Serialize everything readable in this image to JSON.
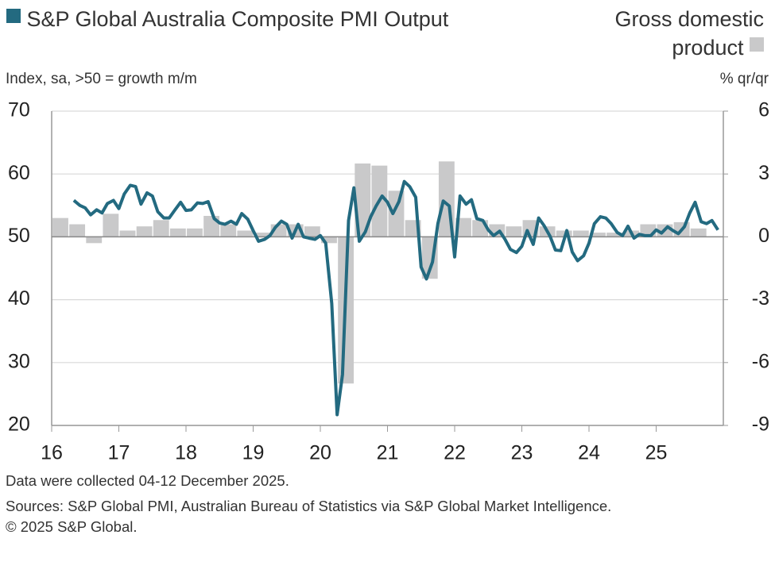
{
  "chart_data": {
    "type": "combo",
    "units_left": "Index, sa, >50 = growth m/m",
    "units_right": "% qr/qr",
    "notes": [
      "Data were collected 04-12 December 2025.",
      "Sources: S&P Global PMI, Australian Bureau of Statistics via S&P Global Market Intelligence.",
      "© 2025 S&P Global."
    ],
    "xlim": [
      16,
      26
    ],
    "xticks": [
      16,
      17,
      18,
      19,
      20,
      21,
      22,
      23,
      24,
      25
    ],
    "ylim": [
      20,
      70
    ],
    "yticks": [
      20,
      30,
      40,
      50,
      60,
      70
    ],
    "y2lim": [
      -9,
      6
    ],
    "y2ticks": [
      -9,
      -6,
      -3,
      0,
      3,
      6
    ],
    "grid": true,
    "series": [
      {
        "name": "Gross domestic product",
        "type": "bar",
        "axis": "y2",
        "color": "#c9c9ca",
        "x": [
          16.13,
          16.38,
          16.63,
          16.88,
          17.13,
          17.38,
          17.63,
          17.88,
          18.13,
          18.38,
          18.63,
          18.88,
          19.13,
          19.38,
          19.63,
          19.88,
          20.13,
          20.38,
          20.63,
          20.88,
          21.13,
          21.38,
          21.63,
          21.88,
          22.13,
          22.38,
          22.63,
          22.88,
          23.13,
          23.38,
          23.63,
          23.88,
          24.13,
          24.38,
          24.63,
          24.88,
          25.13,
          25.38,
          25.63
        ],
        "values": [
          0.9,
          0.6,
          -0.3,
          1.1,
          0.3,
          0.5,
          0.8,
          0.4,
          0.4,
          1.0,
          0.6,
          0.3,
          0.2,
          0.6,
          0.6,
          0.5,
          -0.3,
          -7.0,
          3.5,
          3.4,
          2.2,
          0.8,
          -2.0,
          3.6,
          0.9,
          0.8,
          0.6,
          0.5,
          0.8,
          0.5,
          0.3,
          0.3,
          0.2,
          0.2,
          0.3,
          0.6,
          0.6,
          0.7,
          0.4
        ]
      },
      {
        "name": "S&P Global Australia Composite PMI Output",
        "type": "line",
        "color": "#236a80",
        "x": [
          16.33,
          16.42,
          16.5,
          16.58,
          16.67,
          16.75,
          16.83,
          16.92,
          17,
          17.08,
          17.17,
          17.25,
          17.33,
          17.42,
          17.5,
          17.58,
          17.67,
          17.75,
          17.83,
          17.92,
          18,
          18.08,
          18.17,
          18.25,
          18.33,
          18.42,
          18.5,
          18.58,
          18.67,
          18.75,
          18.83,
          18.92,
          19,
          19.08,
          19.17,
          19.25,
          19.33,
          19.42,
          19.5,
          19.58,
          19.67,
          19.75,
          19.83,
          19.92,
          20,
          20.08,
          20.17,
          20.25,
          20.33,
          20.42,
          20.5,
          20.58,
          20.67,
          20.75,
          20.83,
          20.92,
          21,
          21.08,
          21.17,
          21.25,
          21.33,
          21.42,
          21.5,
          21.58,
          21.67,
          21.75,
          21.83,
          21.92,
          22,
          22.08,
          22.17,
          22.25,
          22.33,
          22.42,
          22.5,
          22.58,
          22.67,
          22.75,
          22.83,
          22.92,
          23,
          23.08,
          23.17,
          23.25,
          23.33,
          23.42,
          23.5,
          23.58,
          23.67,
          23.75,
          23.83,
          23.92,
          24,
          24.08,
          24.17,
          24.25,
          24.33,
          24.42,
          24.5,
          24.58,
          24.67,
          24.75,
          24.83,
          24.92,
          25,
          25.08,
          25.17,
          25.25,
          25.33,
          25.42,
          25.5,
          25.58,
          25.67,
          25.75,
          25.83,
          25.92
        ],
        "values": [
          55.8,
          55.0,
          54.6,
          53.5,
          54.3,
          53.8,
          55.3,
          55.8,
          54.5,
          56.8,
          58.2,
          58.0,
          55.2,
          57.0,
          56.5,
          54.0,
          53.0,
          53.0,
          54.2,
          55.5,
          54.2,
          54.3,
          55.4,
          55.3,
          55.6,
          52.9,
          52.2,
          52.0,
          52.5,
          52.0,
          53.7,
          52.8,
          51.0,
          49.3,
          49.6,
          50.2,
          51.5,
          52.5,
          52.0,
          49.8,
          52.0,
          50.0,
          49.8,
          49.6,
          50.2,
          49.0,
          39.4,
          21.7,
          28.1,
          52.6,
          57.8,
          49.3,
          50.8,
          53.2,
          54.9,
          56.5,
          55.5,
          53.7,
          55.6,
          58.8,
          58.0,
          56.3,
          45.2,
          43.3,
          46.0,
          52.1,
          55.7,
          54.9,
          46.8,
          56.5,
          55.2,
          55.9,
          52.9,
          52.6,
          51.1,
          50.2,
          50.9,
          49.6,
          48.0,
          47.5,
          48.5,
          51.0,
          48.8,
          53.0,
          51.8,
          50.1,
          47.9,
          47.8,
          51.0,
          47.6,
          46.2,
          47.0,
          49.0,
          52.1,
          53.2,
          53.0,
          52.1,
          50.7,
          50.2,
          51.7,
          49.8,
          50.4,
          50.2,
          50.2,
          51.1,
          50.6,
          51.6,
          51.0,
          50.5,
          51.6,
          53.8,
          55.5,
          52.4,
          52.1,
          52.6,
          51.1
        ]
      }
    ]
  }
}
